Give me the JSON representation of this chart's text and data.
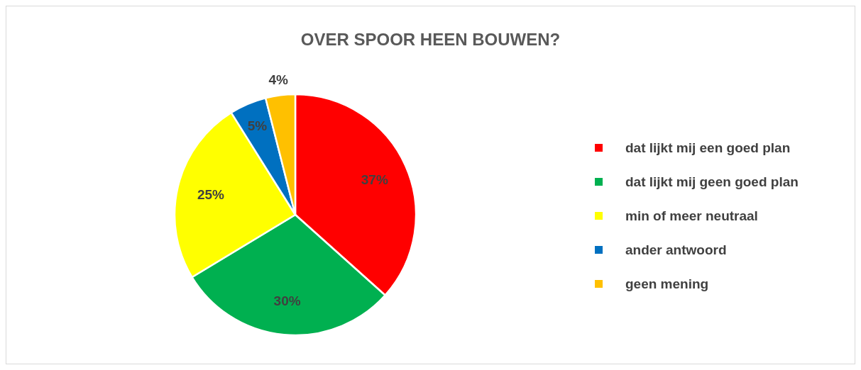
{
  "chart_data": {
    "type": "pie",
    "title": "OVER SPOOR HEEN BOUWEN?",
    "categories": [
      "dat lijkt mij een goed plan",
      "dat lijkt mij geen goed plan",
      "min of meer neutraal",
      "ander antwoord",
      "geen mening"
    ],
    "values": [
      37,
      30,
      25,
      5,
      4
    ],
    "colors": [
      "#ff0000",
      "#00b050",
      "#ffff00",
      "#0070c0",
      "#ffc000"
    ],
    "value_labels": [
      "37%",
      "30%",
      "25%",
      "5%",
      "4%"
    ],
    "legend": "right"
  }
}
